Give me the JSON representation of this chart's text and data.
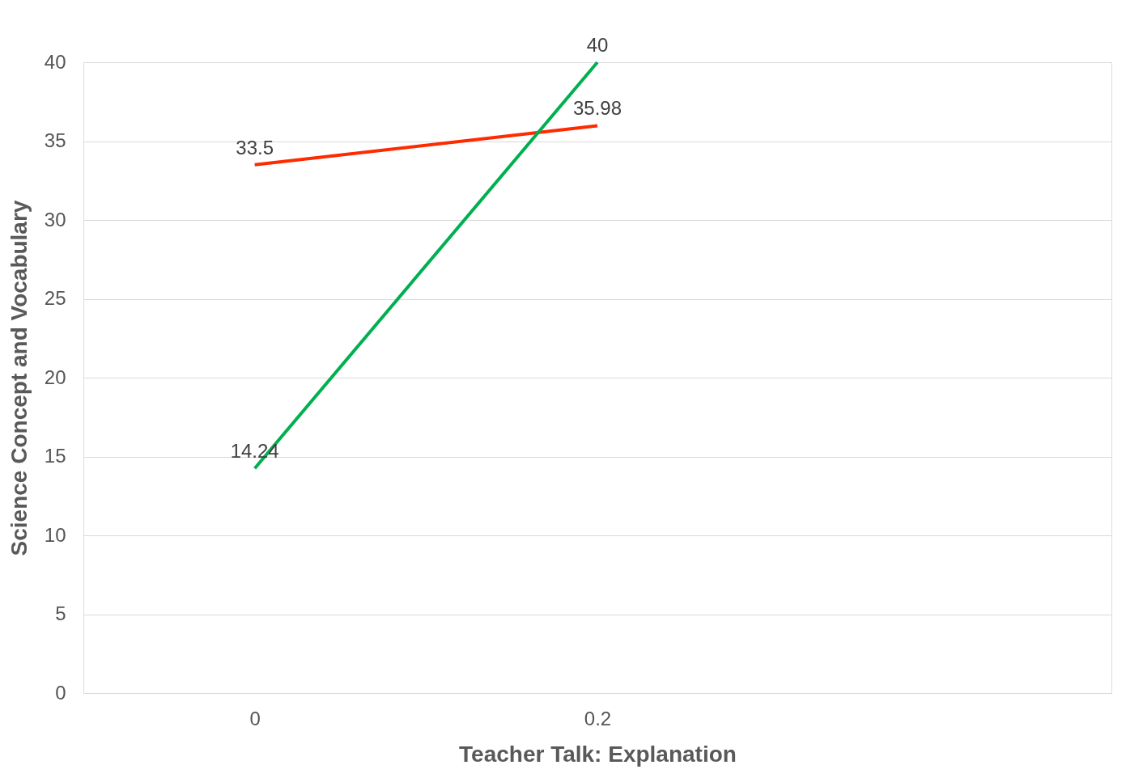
{
  "chart_data": {
    "type": "line",
    "xlabel": "Teacher Talk: Explanation",
    "ylabel": "Science Concept and Vocabulary",
    "categories": [
      "0",
      "0.2",
      null
    ],
    "series": [
      {
        "color": "#ff2a00",
        "values": [
          33.5,
          35.98,
          null
        ]
      },
      {
        "color": "#00b050",
        "values": [
          14.24,
          40,
          null
        ]
      }
    ],
    "ylim": [
      0,
      40
    ],
    "yticks": [
      0,
      5,
      10,
      15,
      20,
      25,
      30,
      35,
      40
    ],
    "grid": "y",
    "data_labels": true,
    "marker": "none",
    "line_style": "solid"
  }
}
